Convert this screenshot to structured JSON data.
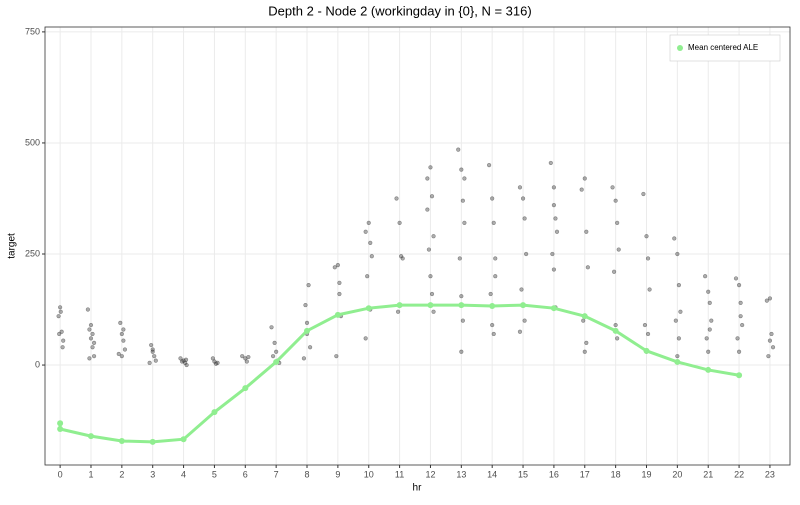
{
  "chart_data": {
    "type": "scatter",
    "title": "Depth 2 - Node 2 (workingday in {0}, N = 316)",
    "x_label": "hr",
    "y_label": "target",
    "xlim": [
      -0.49,
      23.65
    ],
    "ylim": [
      -225,
      761
    ],
    "xticks": [
      0,
      1,
      2,
      3,
      4,
      5,
      6,
      7,
      8,
      9,
      10,
      11,
      12,
      13,
      14,
      15,
      16,
      17,
      18,
      19,
      20,
      21,
      22,
      23
    ],
    "yticks": [
      0,
      250,
      500,
      750
    ],
    "grid": true,
    "legend": "top-right",
    "series": [
      {
        "type": "scatter",
        "color": "#333333",
        "x": [
          -0.05,
          0,
          0.05,
          0.1,
          -0.03,
          0.08,
          0.02,
          0.9,
          0.95,
          1,
          1.05,
          1.1,
          0.95,
          1.05,
          1,
          1.1,
          1.95,
          2,
          2.05,
          2.1,
          1.9,
          2,
          2.05,
          2.95,
          3,
          3.05,
          3.1,
          2.9,
          3,
          3.9,
          4,
          4.05,
          4.1,
          3.95,
          4.08,
          4.95,
          5,
          5.05,
          5.1,
          5.9,
          6,
          6.05,
          6.1,
          6.85,
          6.95,
          7,
          7.05,
          7.1,
          6.9,
          7.95,
          8,
          8.05,
          8.1,
          7.9,
          8,
          8.9,
          9,
          9.05,
          9.1,
          8.95,
          9.05,
          9.9,
          10,
          10.05,
          10.1,
          9.95,
          9.9,
          10.05,
          10.9,
          11,
          11.05,
          11.1,
          10.95,
          11,
          11.9,
          12,
          12.05,
          12.1,
          11.95,
          12,
          12.05,
          12.1,
          11.9,
          12.9,
          13,
          13.05,
          13.1,
          12.95,
          13,
          13.05,
          13,
          13.1,
          13.9,
          14,
          14.05,
          14.1,
          13.95,
          14,
          14.05,
          14.1,
          14.9,
          15,
          15.05,
          15.1,
          14.95,
          15,
          15.05,
          14.9,
          15.9,
          16,
          16.05,
          16.1,
          15.95,
          16,
          16.05,
          16,
          16.9,
          17,
          17.05,
          17.1,
          16.95,
          17,
          17.05,
          17.9,
          18,
          18.05,
          18.1,
          17.95,
          18,
          18.05,
          18.9,
          19,
          19.05,
          19.1,
          18.95,
          19,
          19.05,
          19.9,
          20,
          20.05,
          20.1,
          19.95,
          20,
          20.05,
          20.9,
          21,
          21.05,
          21.1,
          20.95,
          21,
          21.05,
          21.9,
          22,
          22.05,
          22.1,
          21.95,
          22,
          22.05,
          22.9,
          23,
          23.05,
          23.1,
          22.95,
          23
        ],
        "values": [
          110,
          130,
          75,
          55,
          70,
          40,
          120,
          125,
          80,
          60,
          40,
          20,
          15,
          70,
          90,
          50,
          95,
          70,
          55,
          35,
          25,
          20,
          80,
          45,
          30,
          20,
          10,
          5,
          35,
          15,
          10,
          5,
          0,
          8,
          12,
          15,
          8,
          3,
          5,
          20,
          15,
          8,
          18,
          85,
          50,
          30,
          10,
          5,
          20,
          135,
          95,
          180,
          40,
          15,
          70,
          220,
          225,
          185,
          110,
          20,
          160,
          300,
          320,
          275,
          245,
          200,
          60,
          125,
          375,
          320,
          245,
          240,
          120,
          135,
          420,
          445,
          380,
          290,
          260,
          200,
          160,
          120,
          350,
          485,
          440,
          370,
          320,
          240,
          155,
          100,
          30,
          420,
          450,
          375,
          320,
          240,
          160,
          90,
          70,
          200,
          400,
          375,
          330,
          250,
          170,
          135,
          100,
          75,
          455,
          400,
          330,
          300,
          250,
          215,
          130,
          360,
          395,
          420,
          300,
          220,
          100,
          30,
          50,
          400,
          370,
          320,
          260,
          210,
          90,
          60,
          385,
          290,
          240,
          170,
          90,
          30,
          70,
          285,
          250,
          180,
          120,
          100,
          20,
          60,
          200,
          165,
          140,
          100,
          60,
          30,
          80,
          195,
          180,
          140,
          90,
          60,
          30,
          110,
          145,
          150,
          70,
          40,
          20,
          55
        ]
      },
      {
        "type": "line",
        "name": "Mean centered ALE",
        "color": "#90ee90",
        "x": [
          0,
          0,
          1,
          2,
          3,
          4,
          5,
          6,
          7,
          8,
          9,
          10,
          11,
          12,
          13,
          14,
          15,
          16,
          17,
          18,
          19,
          20,
          21,
          22
        ],
        "values": [
          -131,
          -144,
          -160,
          -171,
          -173,
          -167,
          -106,
          -52,
          7,
          77,
          113,
          128,
          135,
          135,
          135,
          133,
          135,
          128,
          110,
          77,
          32,
          7,
          -11,
          -23
        ]
      }
    ]
  }
}
